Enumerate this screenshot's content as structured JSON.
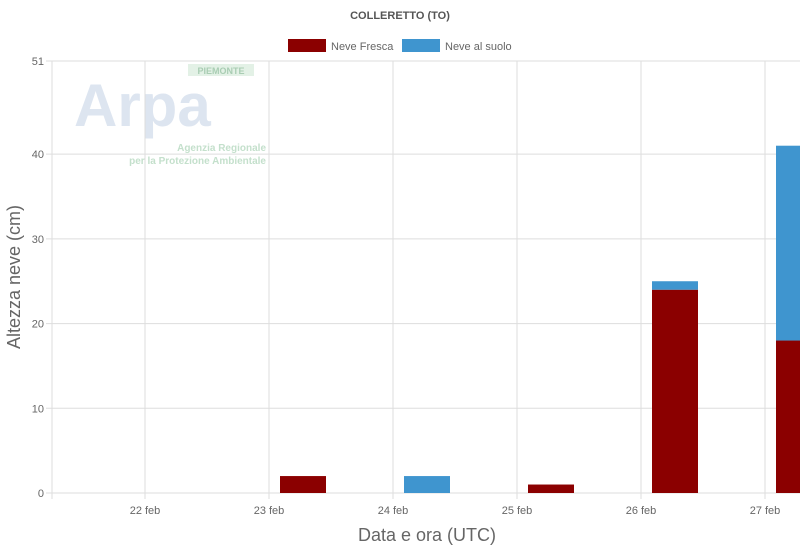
{
  "chart_data": {
    "type": "bar",
    "stacked": true,
    "title": "COLLERETTO (TO)",
    "xlabel": "Data e ora (UTC)",
    "ylabel": "Altezza neve (cm)",
    "ylim": [
      0,
      51
    ],
    "yticks": [
      0,
      10,
      20,
      30,
      40,
      51
    ],
    "xticks": [
      "22 feb",
      "23 feb",
      "24 feb",
      "25 feb",
      "26 feb",
      "27 feb"
    ],
    "categories": [
      "23 feb",
      "24 feb",
      "25 feb",
      "26 feb",
      "27 feb"
    ],
    "grid": true,
    "legend_position": "top",
    "series": [
      {
        "name": "Neve Fresca",
        "color": "#8b0000",
        "values": [
          2,
          0,
          1,
          24,
          18
        ]
      },
      {
        "name": "Neve al suolo",
        "color": "#3f95cf",
        "values": [
          0,
          2,
          0,
          1,
          23
        ]
      }
    ]
  },
  "watermark": {
    "logo_text": "Arpa",
    "top_text": "PIEMONTE",
    "line1": "Agenzia Regionale",
    "line2": "per la Protezione Ambientale"
  }
}
